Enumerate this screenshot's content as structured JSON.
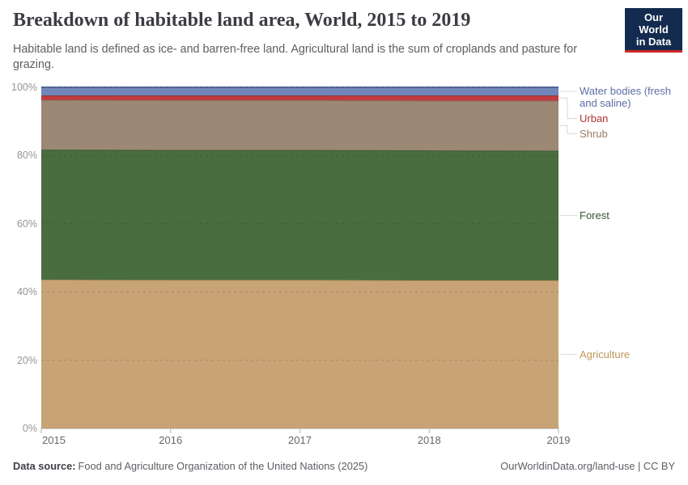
{
  "header": {
    "title": "Breakdown of habitable land area, World, 2015 to 2019",
    "subtitle": "Habitable land is defined as ice- and barren-free land. Agricultural land is the sum of croplands and pasture for grazing.",
    "logo": {
      "line1": "Our World",
      "line2": "in Data",
      "bg_color": "#122b4f",
      "accent_color": "#cd2826"
    }
  },
  "chart_data": {
    "type": "area",
    "stacked": true,
    "title": "Breakdown of habitable land area, World, 2015 to 2019",
    "x": [
      2015,
      2016,
      2017,
      2018,
      2019
    ],
    "xticks": [
      "2015",
      "2016",
      "2017",
      "2018",
      "2019"
    ],
    "unit": "%",
    "ylim": [
      0,
      100
    ],
    "yticks": [
      {
        "value": 0,
        "label": "0%"
      },
      {
        "value": 20,
        "label": "20%"
      },
      {
        "value": 40,
        "label": "40%"
      },
      {
        "value": 60,
        "label": "60%"
      },
      {
        "value": 80,
        "label": "80%"
      },
      {
        "value": 100,
        "label": "100%"
      }
    ],
    "grid": "dashed",
    "legend_position": "right",
    "series": [
      {
        "id": "agriculture",
        "name": "Agriculture",
        "values": [
          43.6,
          43.5,
          43.5,
          43.4,
          43.4
        ],
        "color": "#c8a376",
        "line_color": "#b8935f",
        "label_color": "#bf9859"
      },
      {
        "id": "forest",
        "name": "Forest",
        "values": [
          38.1,
          38.1,
          38.1,
          38.1,
          38.0
        ],
        "color": "#4a6d3f",
        "line_color": "#3a5a31",
        "label_color": "#33582c"
      },
      {
        "id": "shrub",
        "name": "Shrub",
        "values": [
          14.6,
          14.6,
          14.6,
          14.6,
          14.7
        ],
        "color": "#9b8875",
        "line_color": "#877360",
        "label_color": "#977e67"
      },
      {
        "id": "urban",
        "name": "Urban",
        "values": [
          1.3,
          1.4,
          1.4,
          1.5,
          1.5
        ],
        "color": "#c23b3f",
        "line_color": "#9d2c31",
        "label_color": "#b13434"
      },
      {
        "id": "water-bodies",
        "name": "Water bodies (fresh and saline)",
        "label_lines": [
          "Water bodies (fresh",
          "and saline)"
        ],
        "values": [
          2.4,
          2.4,
          2.4,
          2.4,
          2.4
        ],
        "color": "#7187ba",
        "line_color": "#54689b",
        "label_color": "#5b6fa5"
      }
    ]
  },
  "footer": {
    "source_label": "Data source:",
    "source_text": "Food and Agriculture Organization of the United Nations (2025)",
    "credit": "OurWorldinData.org/land-use | CC BY"
  }
}
